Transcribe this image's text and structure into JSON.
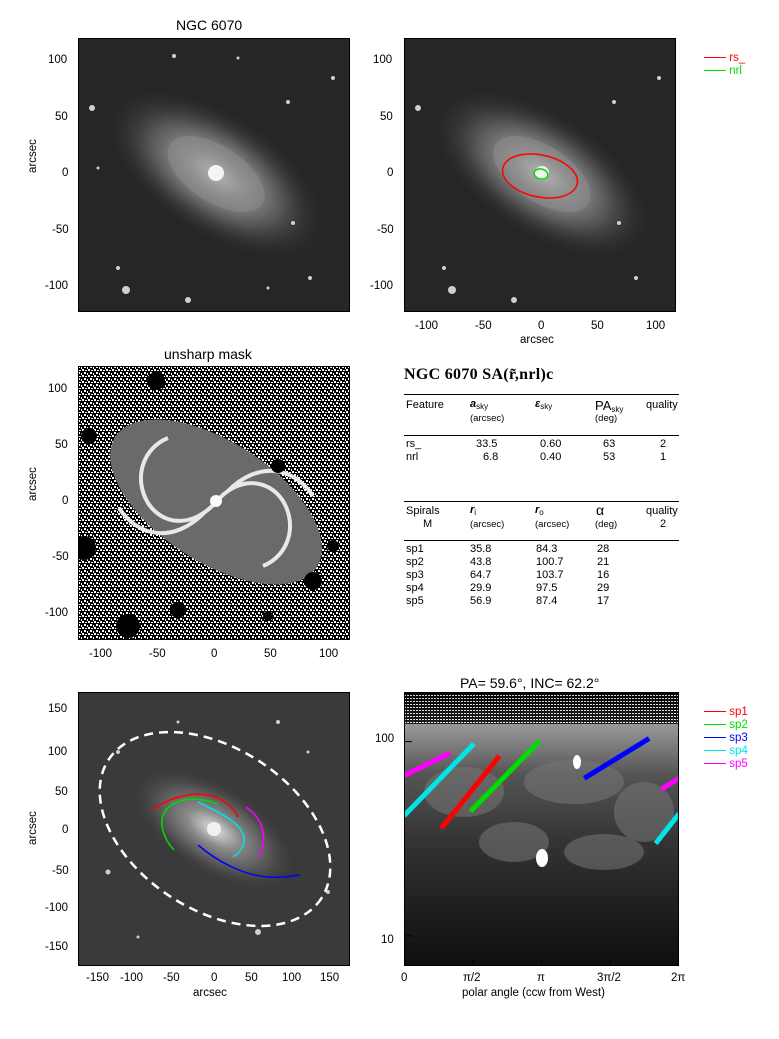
{
  "panel1": {
    "title": "NGC 6070",
    "ylabel": "arcsec",
    "xticks": [
      "-100",
      "-50",
      "0",
      "50",
      "100"
    ],
    "yticks": [
      "100",
      "50",
      "0",
      "-50",
      "-100"
    ]
  },
  "panel2": {
    "xlabel": "arcsec",
    "xticks": [
      "-100",
      "-50",
      "0",
      "50",
      "100"
    ],
    "yticks": [
      "100",
      "50",
      "0",
      "-50",
      "-100"
    ],
    "legend": [
      {
        "label": "rs_",
        "color": "#ff0000"
      },
      {
        "label": "nrl",
        "color": "#00dd00"
      }
    ]
  },
  "panel3": {
    "title": "unsharp mask",
    "ylabel": "arcsec",
    "xticks": [
      "-100",
      "-50",
      "0",
      "50",
      "100"
    ],
    "yticks": [
      "100",
      "50",
      "0",
      "-50",
      "-100"
    ]
  },
  "table": {
    "title": "NGC 6070  SA(r̃,nrl)c",
    "features_header": {
      "feature": "Feature",
      "a": "a",
      "a_sub": "sky",
      "a_unit": "(arcsec)",
      "eps": "ε",
      "eps_sub": "sky",
      "pa": "PA",
      "pa_sub": "sky",
      "pa_unit": "(deg)",
      "quality": "quality"
    },
    "features": [
      {
        "name": "rs_",
        "a": "33.5",
        "eps": "0.60",
        "pa": "63",
        "quality": "2"
      },
      {
        "name": "nrl",
        "a": "6.8",
        "eps": "0.40",
        "pa": "53",
        "quality": "1"
      }
    ],
    "spirals_header": {
      "spirals": "Spirals",
      "m": "M",
      "ri": "r",
      "ri_sub": "i",
      "ri_unit": "(arcsec)",
      "ro": "r",
      "ro_sub": "o",
      "ro_unit": "(arcsec)",
      "alpha": "α",
      "alpha_unit": "(deg)",
      "quality": "quality",
      "quality_val": "2"
    },
    "spirals": [
      {
        "name": "sp1",
        "ri": "35.8",
        "ro": "84.3",
        "alpha": "28"
      },
      {
        "name": "sp2",
        "ri": "43.8",
        "ro": "100.7",
        "alpha": "21"
      },
      {
        "name": "sp3",
        "ri": "64.7",
        "ro": "103.7",
        "alpha": "16"
      },
      {
        "name": "sp4",
        "ri": "29.9",
        "ro": "97.5",
        "alpha": "29"
      },
      {
        "name": "sp5",
        "ri": "56.9",
        "ro": "87.4",
        "alpha": "17"
      }
    ]
  },
  "panel4": {
    "xlabel": "arcsec",
    "ylabel": "arcsec",
    "xticks": [
      "-150",
      "-100",
      "-50",
      "0",
      "50",
      "100",
      "150"
    ],
    "yticks": [
      "150",
      "100",
      "50",
      "0",
      "-50",
      "-100",
      "-150"
    ]
  },
  "panel5": {
    "title": "PA=  59.6°, INC=  62.2°",
    "xlabel": "polar angle (ccw from West)",
    "xticks": [
      "0",
      "π/2",
      "π",
      "3π/2",
      "2π"
    ],
    "yticks": [
      "100",
      "10"
    ],
    "legend": [
      {
        "label": "sp1",
        "color": "#ff0000"
      },
      {
        "label": "sp2",
        "color": "#00dd00"
      },
      {
        "label": "sp3",
        "color": "#0000ff"
      },
      {
        "label": "sp4",
        "color": "#00e5e5"
      },
      {
        "label": "sp5",
        "color": "#ff00ff"
      }
    ]
  },
  "chart_data": [
    {
      "type": "scatter",
      "subtype": "log-polar spiral fits",
      "title": "PA=  59.6°, INC=  62.2°",
      "xlabel": "polar angle (ccw from West)",
      "xlim": [
        0,
        6.2832
      ],
      "ylim": [
        7,
        180
      ],
      "ylog": true,
      "series": [
        {
          "name": "sp1",
          "color": "#ff0000",
          "segments": [
            [
              [
                0.85,
                35.8
              ],
              [
                2.18,
                84.3
              ]
            ]
          ]
        },
        {
          "name": "sp2",
          "color": "#00dd00",
          "segments": [
            [
              [
                1.52,
                43.8
              ],
              [
                3.1,
                100.7
              ]
            ]
          ]
        },
        {
          "name": "sp3",
          "color": "#0000ff",
          "segments": [
            [
              [
                4.12,
                64.7
              ],
              [
                5.6,
                103.7
              ]
            ]
          ]
        },
        {
          "name": "sp4",
          "color": "#00e5e5",
          "segments": [
            [
              [
                0.0,
                41.5
              ],
              [
                1.6,
                97.5
              ]
            ],
            [
              [
                5.75,
                29.9
              ],
              [
                6.2832,
                42.5
              ]
            ]
          ]
        },
        {
          "name": "sp5",
          "color": "#ff00ff",
          "segments": [
            [
              [
                0.0,
                66.8
              ],
              [
                1.05,
                87.4
              ]
            ],
            [
              [
                5.88,
                56.9
              ],
              [
                6.2832,
                64.8
              ]
            ]
          ]
        }
      ]
    }
  ]
}
